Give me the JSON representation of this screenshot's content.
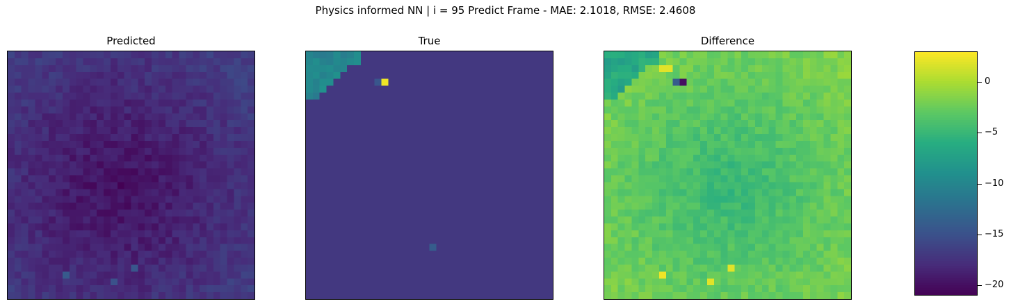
{
  "chart_data": {
    "type": "heatmap",
    "title": "Physics informed NN | i = 95 Predict Frame - MAE: 2.1018, RMSE: 2.4608",
    "colormap": "viridis",
    "grid": false,
    "panels": [
      {
        "title": "Predicted",
        "rows": 36,
        "cols": 36,
        "vrange": [
          -21,
          3
        ],
        "pattern": "radial-low-center",
        "edge_value": -16.5,
        "center_value": -20.2,
        "center": [
          0.45,
          0.55
        ],
        "noise": 1.0,
        "spots": [
          {
            "row": 31,
            "col": 18,
            "value": -14.5
          },
          {
            "row": 32,
            "col": 8,
            "value": -14.2
          },
          {
            "row": 33,
            "col": 15,
            "value": -15.0
          }
        ]
      },
      {
        "title": "True",
        "rows": 36,
        "cols": 36,
        "vrange": [
          -21,
          3
        ],
        "pattern": "constant",
        "base_value": -17.0,
        "corner_region": {
          "rows": 7,
          "cols": 8,
          "value": -10.0
        },
        "spots": [
          {
            "row": 4,
            "col": 11,
            "value": 2.5
          },
          {
            "row": 4,
            "col": 10,
            "value": -14.5
          },
          {
            "row": 28,
            "col": 18,
            "value": -14.0
          }
        ]
      },
      {
        "title": "Difference",
        "rows": 36,
        "cols": 36,
        "vrange": [
          -21,
          3
        ],
        "pattern": "radial-low-center",
        "edge_value": -1.5,
        "center_value": -5.0,
        "center": [
          0.5,
          0.55
        ],
        "noise": 1.0,
        "corner_region": {
          "rows": 7,
          "cols": 8,
          "value": -6.5
        },
        "spots": [
          {
            "row": 4,
            "col": 11,
            "value": -20.0
          },
          {
            "row": 4,
            "col": 10,
            "value": -14.0
          },
          {
            "row": 2,
            "col": 8,
            "value": 2.0
          },
          {
            "row": 2,
            "col": 9,
            "value": 2.0
          },
          {
            "row": 31,
            "col": 18,
            "value": 2.0
          },
          {
            "row": 32,
            "col": 8,
            "value": 2.5
          },
          {
            "row": 33,
            "col": 15,
            "value": 2.0
          }
        ]
      }
    ],
    "colorbar": {
      "range": [
        -21,
        3
      ],
      "ticks": [
        0,
        -5,
        -10,
        -15,
        -20
      ],
      "tick_labels": [
        "0",
        "−5",
        "−10",
        "−15",
        "−20"
      ]
    }
  }
}
